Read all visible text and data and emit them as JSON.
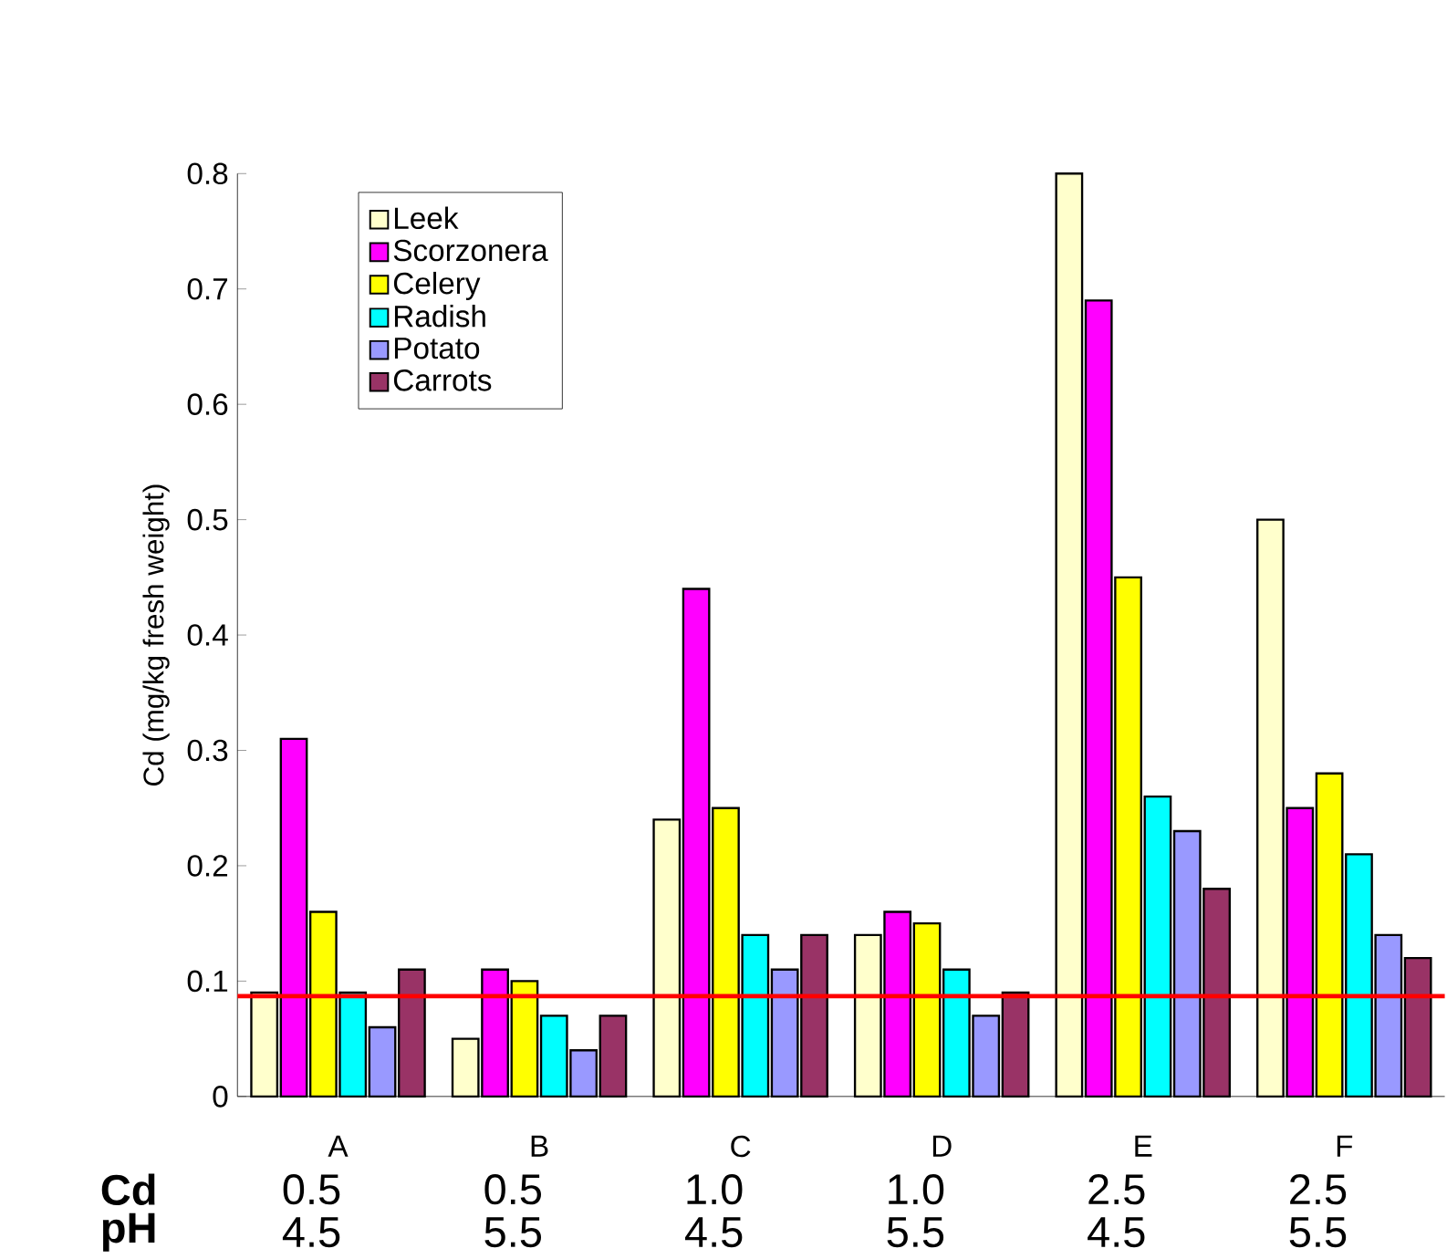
{
  "chart_data": {
    "type": "bar",
    "ylabel": "Cd (mg/kg fresh weight)",
    "categories": [
      "A",
      "B",
      "C",
      "D",
      "E",
      "F"
    ],
    "series": [
      {
        "name": "Leek",
        "color": "#ffffcc",
        "values": [
          0.09,
          0.05,
          0.24,
          0.14,
          0.8,
          0.5
        ]
      },
      {
        "name": "Scorzonera",
        "color": "#ff00ff",
        "values": [
          0.31,
          0.11,
          0.44,
          0.16,
          0.69,
          0.25
        ]
      },
      {
        "name": "Celery",
        "color": "#ffff00",
        "values": [
          0.16,
          0.1,
          0.25,
          0.15,
          0.45,
          0.28
        ]
      },
      {
        "name": "Radish",
        "color": "#00ffff",
        "values": [
          0.09,
          0.07,
          0.14,
          0.11,
          0.26,
          0.21
        ]
      },
      {
        "name": "Potato",
        "color": "#9999ff",
        "values": [
          0.06,
          0.04,
          0.11,
          0.07,
          0.23,
          0.14
        ]
      },
      {
        "name": "Carrots",
        "color": "#993366",
        "values": [
          0.11,
          0.07,
          0.14,
          0.09,
          0.18,
          0.12
        ]
      }
    ],
    "ylim": [
      0,
      0.8
    ],
    "yticks": [
      0,
      0.1,
      0.2,
      0.3,
      0.4,
      0.5,
      0.6,
      0.7,
      0.8
    ],
    "ref_lines": [
      {
        "axis": "y",
        "value": 0.087,
        "color": "#ff0000"
      }
    ],
    "legend": "top left",
    "grid": false,
    "annotations": [
      "Cd",
      "0.5",
      "0.5",
      "1.0",
      "1.0",
      "2.5",
      "2.5",
      "pH",
      "4.5",
      "5.5",
      "4.5",
      "5.5",
      "4.5",
      "5.5"
    ]
  }
}
